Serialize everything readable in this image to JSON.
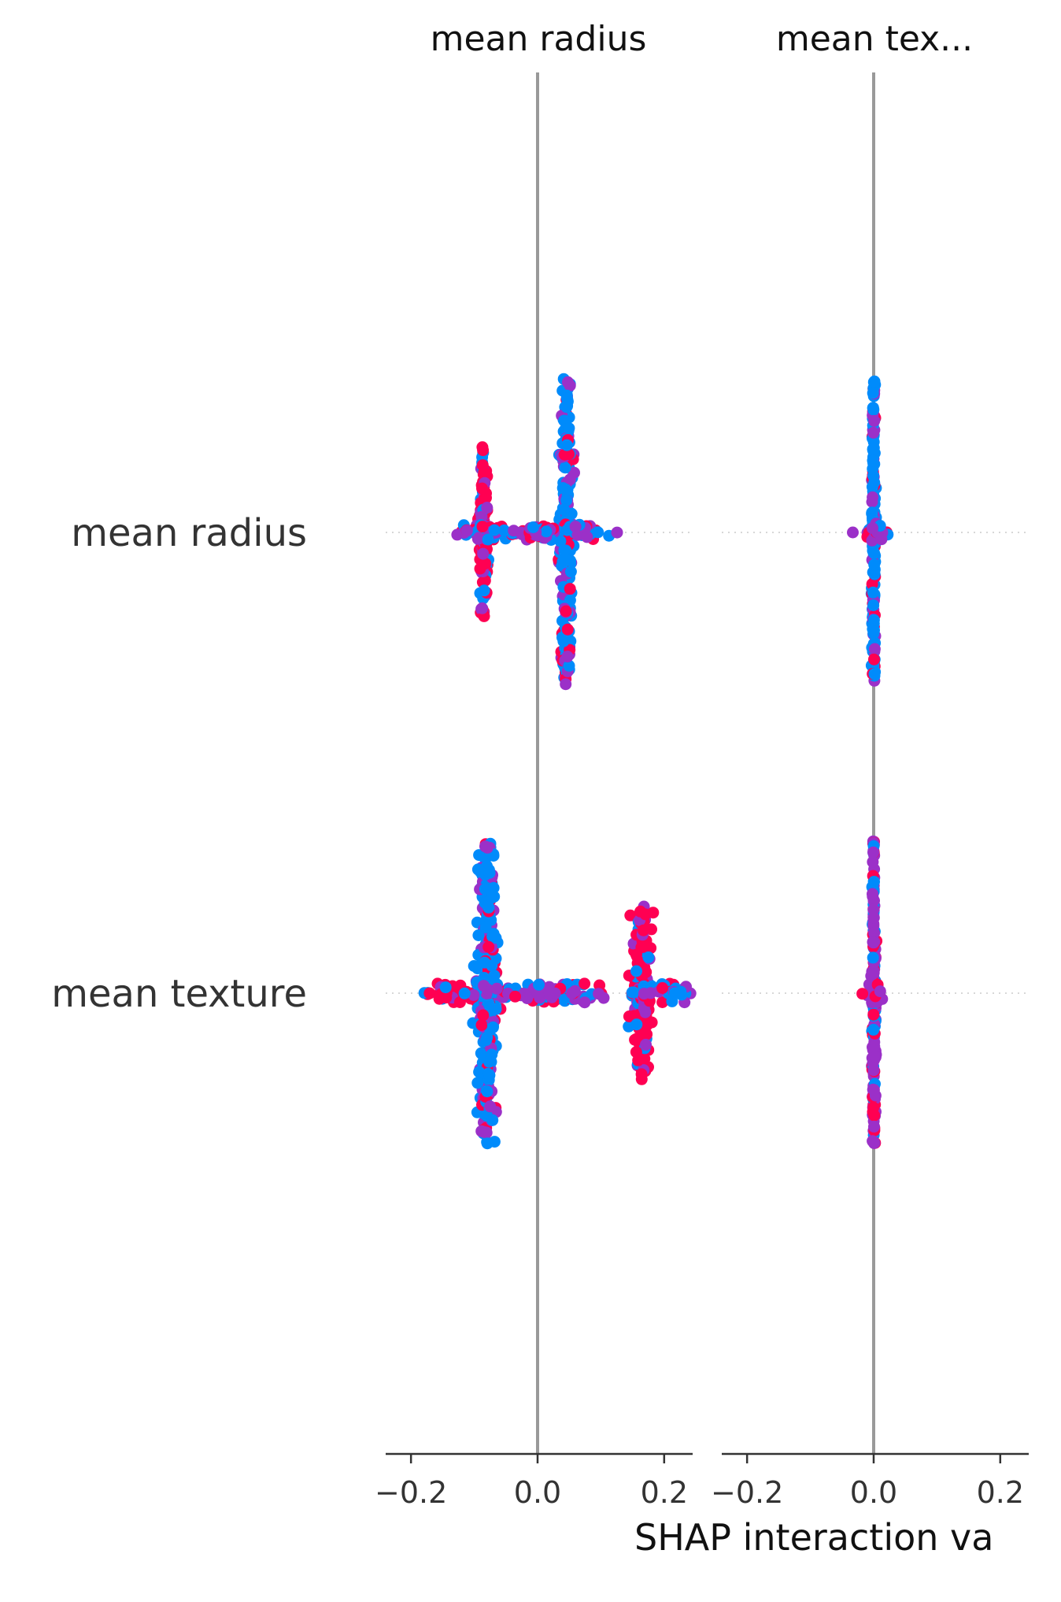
{
  "chart_data": {
    "type": "scatter",
    "subtype": "shap-interaction-beeswarm",
    "xlabel": "SHAP interaction va",
    "panels": [
      {
        "title": "mean radius",
        "xlim": [
          -0.24,
          0.245
        ],
        "xticks": [
          "−0.2",
          "0.0",
          "0.2"
        ],
        "xtick_values": [
          -0.2,
          0.0,
          0.2
        ]
      },
      {
        "title": "mean tex...",
        "xlim": [
          -0.24,
          0.245
        ],
        "xticks": [
          "−0.2",
          "0.0",
          "0.2"
        ],
        "xtick_values": [
          -0.2,
          0.0,
          0.2
        ]
      }
    ],
    "features": [
      "mean radius",
      "mean texture"
    ],
    "colors": {
      "high": "#ff0052",
      "mid": "#9b30c8",
      "low": "#008bfb",
      "zero_line": "#999999",
      "axis": "#333333",
      "guide": "#cccccc"
    },
    "clusters": [
      {
        "panel": 0,
        "row": 0,
        "center": -0.085,
        "spread": 0.004,
        "extent": 0.45,
        "n": 150,
        "color": "high"
      },
      {
        "panel": 0,
        "row": 0,
        "center": 0.045,
        "spread": 0.006,
        "extent": 0.8,
        "n": 260,
        "color": "low"
      },
      {
        "panel": 0,
        "row": 0,
        "center": -0.08,
        "spread": 0.03,
        "extent": 0.04,
        "n": 60,
        "color": "mid"
      },
      {
        "panel": 0,
        "row": 0,
        "center": 0.0,
        "spread": 0.02,
        "extent": 0.04,
        "n": 40,
        "color": "mid"
      },
      {
        "panel": 0,
        "row": 0,
        "center": 0.07,
        "spread": 0.02,
        "extent": 0.04,
        "n": 30,
        "color": "mid"
      },
      {
        "panel": 1,
        "row": 0,
        "center": 0.0,
        "spread": 0.002,
        "extent": 0.8,
        "n": 200,
        "color": "low"
      },
      {
        "panel": 1,
        "row": 0,
        "center": 0.0,
        "spread": 0.012,
        "extent": 0.05,
        "n": 30,
        "color": "mid"
      },
      {
        "panel": 0,
        "row": 1,
        "center": -0.08,
        "spread": 0.01,
        "extent": 0.78,
        "n": 290,
        "color": "low"
      },
      {
        "panel": 0,
        "row": 1,
        "center": 0.165,
        "spread": 0.01,
        "extent": 0.45,
        "n": 160,
        "color": "high"
      },
      {
        "panel": 0,
        "row": 1,
        "center": 0.02,
        "spread": 0.05,
        "extent": 0.05,
        "n": 110,
        "color": "mid"
      },
      {
        "panel": 0,
        "row": 1,
        "center": -0.14,
        "spread": 0.025,
        "extent": 0.05,
        "n": 40,
        "color": "high"
      },
      {
        "panel": 0,
        "row": 1,
        "center": 0.21,
        "spread": 0.02,
        "extent": 0.05,
        "n": 30,
        "color": "low"
      },
      {
        "panel": 1,
        "row": 1,
        "center": 0.0,
        "spread": 0.002,
        "extent": 0.8,
        "n": 200,
        "color": "mid"
      },
      {
        "panel": 1,
        "row": 1,
        "center": 0.0,
        "spread": 0.01,
        "extent": 0.05,
        "n": 25,
        "color": "high"
      }
    ]
  }
}
